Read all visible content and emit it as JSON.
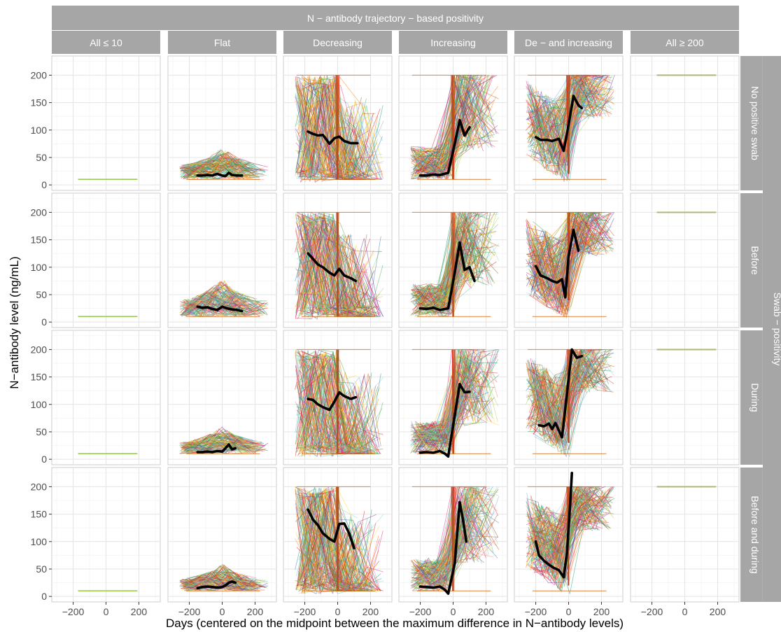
{
  "chart_data": {
    "type": "line",
    "title": "",
    "xlabel": "Days (centered on the midpoint between the maximum difference in N−antibody levels)",
    "ylabel": "N−antibody level (ng/mL)",
    "xlim": [
      -330,
      330
    ],
    "ylim": [
      -10,
      235
    ],
    "x_ticks": [
      -200,
      0,
      200
    ],
    "x_tick_labels": [
      "−200",
      "0",
      "200"
    ],
    "y_ticks": [
      0,
      50,
      100,
      150,
      200
    ],
    "y_tick_labels": [
      "0",
      "50",
      "100",
      "150",
      "200"
    ],
    "grid": true,
    "legend": "none",
    "col_facet_title": "N − antibody trajectory − based positivity",
    "col_facets": [
      "All ≤ 10",
      "Flat",
      "Decreasing",
      "Increasing",
      "De −  and increasing",
      "All ≥ 200"
    ],
    "row_facet_title": "Swab − positivity",
    "row_facets": [
      "No positive swab",
      "Before",
      "During",
      "Before and during"
    ],
    "series_note": "Thin colored lines are individual participant trajectories; the thick black line in each panel is the smoothed mean trajectory.",
    "panels": [
      {
        "row": 0,
        "col": 0,
        "density": 0,
        "baseline": 10,
        "x_range": [
          -170,
          190
        ],
        "mean": []
      },
      {
        "row": 0,
        "col": 1,
        "density": 110,
        "pattern": "flat",
        "lo": 10,
        "hi": 70,
        "mean_y": [
          17,
          17,
          18,
          17,
          20,
          17,
          16,
          22,
          18,
          17,
          17
        ],
        "mean_x": [
          -150,
          -120,
          -90,
          -60,
          -30,
          0,
          20,
          40,
          60,
          90,
          120
        ]
      },
      {
        "row": 0,
        "col": 2,
        "density": 150,
        "pattern": "decreasing",
        "lo": 10,
        "hi": 200,
        "mean_y": [
          97,
          93,
          90,
          91,
          75,
          85,
          88,
          80,
          76,
          76
        ],
        "mean_x": [
          -180,
          -150,
          -120,
          -90,
          -50,
          -20,
          10,
          40,
          80,
          120
        ]
      },
      {
        "row": 0,
        "col": 3,
        "density": 140,
        "pattern": "increasing",
        "lo": 10,
        "hi": 200,
        "mean_y": [
          17,
          17,
          19,
          18,
          22,
          75,
          118,
          90,
          105
        ],
        "mean_x": [
          -200,
          -160,
          -120,
          -80,
          -30,
          10,
          40,
          70,
          100
        ]
      },
      {
        "row": 0,
        "col": 4,
        "density": 150,
        "pattern": "deinc",
        "lo": 20,
        "hi": 200,
        "mean_y": [
          87,
          82,
          82,
          80,
          84,
          62,
          110,
          162,
          145,
          140
        ],
        "mean_x": [
          -200,
          -170,
          -130,
          -100,
          -60,
          -30,
          0,
          30,
          60,
          80
        ]
      },
      {
        "row": 0,
        "col": 5,
        "density": 0,
        "baseline": 200,
        "x_range": [
          -170,
          190
        ],
        "mean": []
      },
      {
        "row": 1,
        "col": 0,
        "density": 0,
        "baseline": 10,
        "x_range": [
          -170,
          190
        ],
        "mean": []
      },
      {
        "row": 1,
        "col": 1,
        "density": 120,
        "pattern": "flat",
        "lo": 10,
        "hi": 80,
        "mean_y": [
          28,
          26,
          27,
          24,
          22,
          28,
          25,
          23,
          22,
          20
        ],
        "mean_x": [
          -150,
          -120,
          -90,
          -60,
          -30,
          0,
          30,
          60,
          90,
          120
        ]
      },
      {
        "row": 1,
        "col": 2,
        "density": 150,
        "pattern": "decreasing",
        "lo": 10,
        "hi": 200,
        "mean_y": [
          125,
          115,
          105,
          100,
          90,
          85,
          97,
          85,
          80,
          75
        ],
        "mean_x": [
          -180,
          -150,
          -120,
          -90,
          -50,
          -20,
          10,
          40,
          80,
          110
        ]
      },
      {
        "row": 1,
        "col": 3,
        "density": 140,
        "pattern": "increasing",
        "lo": 10,
        "hi": 200,
        "mean_y": [
          25,
          24,
          26,
          22,
          25,
          90,
          145,
          95,
          100,
          75
        ],
        "mean_x": [
          -200,
          -160,
          -120,
          -80,
          -30,
          10,
          40,
          70,
          100,
          130
        ]
      },
      {
        "row": 1,
        "col": 4,
        "density": 150,
        "pattern": "deinc",
        "lo": 40,
        "hi": 200,
        "mean_y": [
          102,
          85,
          80,
          75,
          72,
          78,
          45,
          120,
          168,
          130
        ],
        "mean_x": [
          -200,
          -170,
          -130,
          -100,
          -70,
          -40,
          -20,
          0,
          30,
          60
        ]
      },
      {
        "row": 1,
        "col": 5,
        "density": 0,
        "baseline": 200,
        "x_range": [
          -170,
          190
        ],
        "mean": []
      },
      {
        "row": 2,
        "col": 0,
        "density": 0,
        "baseline": 10,
        "x_range": [
          -170,
          190
        ],
        "mean": []
      },
      {
        "row": 2,
        "col": 1,
        "density": 110,
        "pattern": "flat",
        "lo": 10,
        "hi": 60,
        "mean_y": [
          13,
          13,
          14,
          13,
          15,
          14,
          20,
          27,
          18,
          20
        ],
        "mean_x": [
          -150,
          -120,
          -90,
          -60,
          -30,
          0,
          20,
          40,
          60,
          80
        ]
      },
      {
        "row": 2,
        "col": 2,
        "density": 150,
        "pattern": "decreasing",
        "lo": 10,
        "hi": 200,
        "mean_y": [
          110,
          108,
          100,
          95,
          90,
          105,
          122,
          115,
          110,
          113
        ],
        "mean_x": [
          -180,
          -150,
          -120,
          -90,
          -50,
          -20,
          10,
          40,
          80,
          110
        ]
      },
      {
        "row": 2,
        "col": 3,
        "density": 140,
        "pattern": "increasing",
        "lo": 10,
        "hi": 200,
        "mean_y": [
          12,
          13,
          12,
          15,
          10,
          5,
          80,
          137,
          122,
          123
        ],
        "mean_x": [
          -200,
          -160,
          -120,
          -80,
          -50,
          -30,
          10,
          40,
          70,
          100
        ]
      },
      {
        "row": 2,
        "col": 4,
        "density": 150,
        "pattern": "deinc",
        "lo": 30,
        "hi": 200,
        "mean_y": [
          62,
          60,
          65,
          55,
          66,
          40,
          120,
          200,
          185,
          188
        ],
        "mean_x": [
          -180,
          -150,
          -120,
          -100,
          -80,
          -40,
          -10,
          20,
          50,
          80
        ]
      },
      {
        "row": 2,
        "col": 5,
        "density": 0,
        "baseline": 200,
        "x_range": [
          -170,
          190
        ],
        "mean": []
      },
      {
        "row": 3,
        "col": 0,
        "density": 0,
        "baseline": 10,
        "x_range": [
          -170,
          190
        ],
        "mean": []
      },
      {
        "row": 3,
        "col": 1,
        "density": 110,
        "pattern": "flat",
        "lo": 10,
        "hi": 60,
        "mean_y": [
          15,
          17,
          18,
          17,
          16,
          17,
          20,
          25,
          27,
          25
        ],
        "mean_x": [
          -150,
          -120,
          -90,
          -60,
          -30,
          0,
          20,
          40,
          60,
          80
        ]
      },
      {
        "row": 3,
        "col": 2,
        "density": 150,
        "pattern": "decreasing",
        "lo": 10,
        "hi": 200,
        "mean_y": [
          158,
          140,
          130,
          115,
          105,
          100,
          132,
          133,
          115,
          88
        ],
        "mean_x": [
          -180,
          -150,
          -120,
          -90,
          -50,
          -20,
          10,
          40,
          70,
          100
        ]
      },
      {
        "row": 3,
        "col": 3,
        "density": 140,
        "pattern": "increasing",
        "lo": 10,
        "hi": 200,
        "mean_y": [
          18,
          17,
          16,
          18,
          12,
          5,
          60,
          172,
          140,
          100
        ],
        "mean_x": [
          -200,
          -160,
          -120,
          -80,
          -50,
          -30,
          10,
          40,
          60,
          80
        ]
      },
      {
        "row": 3,
        "col": 4,
        "density": 150,
        "pattern": "deinc",
        "lo": 20,
        "hi": 200,
        "mean_y": [
          100,
          75,
          65,
          58,
          52,
          48,
          35,
          80,
          170,
          225
        ],
        "mean_x": [
          -200,
          -180,
          -150,
          -120,
          -90,
          -60,
          -30,
          -10,
          10,
          20
        ]
      },
      {
        "row": 3,
        "col": 5,
        "density": 0,
        "baseline": 200,
        "x_range": [
          -170,
          190
        ],
        "mean": []
      }
    ],
    "palette": [
      "#e41a1c",
      "#d95f02",
      "#ff7f00",
      "#a65628",
      "#e7298a",
      "#ffd92f",
      "#4daf4a",
      "#66c2a5",
      "#1b9e77",
      "#a6d854",
      "#377eb8",
      "#6a3d9a",
      "#80b1d3",
      "#8dd3c7",
      "#fb8072",
      "#b15928"
    ],
    "mean_color": "#000000"
  }
}
